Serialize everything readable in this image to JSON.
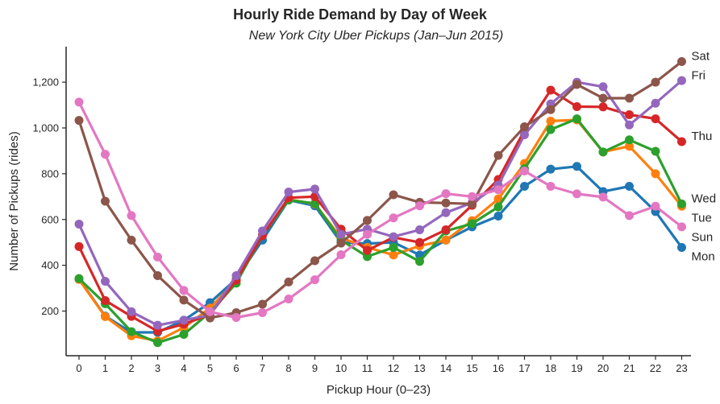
{
  "chart_data": {
    "type": "line",
    "title": "Hourly Ride Demand by Day of Week",
    "subtitle": "New York City Uber Pickups (Jan–Jun 2015)",
    "xlabel": "Pickup Hour (0–23)",
    "ylabel": "Number of Pickups (rides)",
    "x": [
      0,
      1,
      2,
      3,
      4,
      5,
      6,
      7,
      8,
      9,
      10,
      11,
      12,
      13,
      14,
      15,
      16,
      17,
      18,
      19,
      20,
      21,
      22,
      23
    ],
    "xticks": [
      "0",
      "1",
      "2",
      "3",
      "4",
      "5",
      "6",
      "7",
      "8",
      "9",
      "10",
      "11",
      "12",
      "13",
      "14",
      "15",
      "16",
      "17",
      "18",
      "19",
      "20",
      "21",
      "22",
      "23"
    ],
    "yticks": [
      200,
      400,
      600,
      800,
      1000,
      1200
    ],
    "ytick_labels": [
      "200",
      "400",
      "600",
      "800",
      "1,000",
      "1,200"
    ],
    "ylim": [
      5,
      1355
    ],
    "grid": false,
    "legend": "inline labels at line ends",
    "series": [
      {
        "name": "Mon",
        "color": "#1f77b4",
        "values": [
          340,
          178,
          107,
          107,
          160,
          237,
          340,
          510,
          685,
          660,
          500,
          495,
          500,
          445,
          510,
          568,
          615,
          745,
          820,
          832,
          722,
          745,
          635,
          478
        ]
      },
      {
        "name": "Tue",
        "color": "#ff7f0e",
        "values": [
          338,
          176,
          92,
          70,
          128,
          213,
          335,
          530,
          688,
          668,
          520,
          478,
          445,
          485,
          510,
          595,
          690,
          845,
          1030,
          1035,
          895,
          920,
          800,
          658
        ]
      },
      {
        "name": "Wed",
        "color": "#2ca02c",
        "values": [
          342,
          232,
          110,
          62,
          98,
          195,
          322,
          530,
          685,
          670,
          510,
          438,
          478,
          417,
          550,
          582,
          655,
          822,
          993,
          1040,
          895,
          948,
          898,
          668
        ]
      },
      {
        "name": "Thu",
        "color": "#d62728",
        "values": [
          482,
          246,
          177,
          112,
          143,
          185,
          335,
          530,
          695,
          700,
          558,
          465,
          522,
          500,
          555,
          662,
          775,
          990,
          1165,
          1093,
          1092,
          1058,
          1040,
          940
        ]
      },
      {
        "name": "Fri",
        "color": "#9467bd",
        "values": [
          580,
          330,
          197,
          138,
          160,
          183,
          355,
          550,
          720,
          733,
          535,
          558,
          525,
          555,
          630,
          673,
          750,
          970,
          1105,
          1200,
          1180,
          1013,
          1108,
          1207
        ]
      },
      {
        "name": "Sat",
        "color": "#8c564b",
        "values": [
          1033,
          680,
          510,
          355,
          248,
          170,
          193,
          230,
          327,
          420,
          497,
          596,
          708,
          675,
          672,
          668,
          880,
          1005,
          1080,
          1190,
          1130,
          1130,
          1200,
          1290
        ]
      },
      {
        "name": "Sun",
        "color": "#e377c2",
        "values": [
          1113,
          885,
          617,
          436,
          290,
          197,
          172,
          193,
          253,
          337,
          446,
          535,
          607,
          660,
          713,
          700,
          730,
          812,
          745,
          712,
          698,
          617,
          658,
          568
        ]
      }
    ]
  }
}
